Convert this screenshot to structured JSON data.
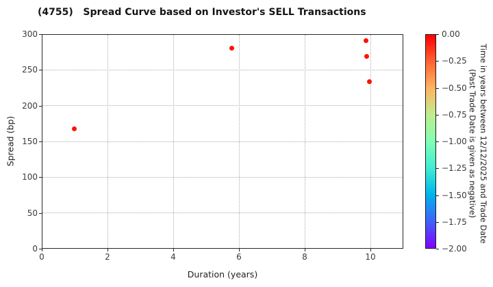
{
  "title": "(4755)   Spread Curve based on Investor's SELL Transactions",
  "chart_data": {
    "type": "scatter",
    "title": "(4755)   Spread Curve based on Investor's SELL Transactions",
    "xlabel": "Duration (years)",
    "ylabel": "Spread (bp)",
    "xlim": [
      0,
      11
    ],
    "ylim": [
      0,
      300
    ],
    "xticks": [
      0,
      2,
      4,
      6,
      8,
      10
    ],
    "yticks": [
      0,
      50,
      100,
      150,
      200,
      250,
      300
    ],
    "grid": true,
    "point_color": "#ff1200",
    "points": [
      {
        "x": 0.96,
        "y": 169,
        "time_value": 0.0
      },
      {
        "x": 5.77,
        "y": 281,
        "time_value": 0.0
      },
      {
        "x": 9.85,
        "y": 292,
        "time_value": 0.0
      },
      {
        "x": 9.87,
        "y": 270,
        "time_value": 0.0
      },
      {
        "x": 9.94,
        "y": 235,
        "time_value": 0.0
      }
    ],
    "colorbar": {
      "label_line1": "Time in years between 12/12/2025 and Trade Date",
      "label_line2": "(Past Trade Date is given as negative)",
      "vmax": 0.0,
      "vmin": -2.0,
      "tick_labels": [
        "0.00",
        "−0.25",
        "−0.50",
        "−0.75",
        "−1.00",
        "−1.25",
        "−1.50",
        "−1.75",
        "−2.00"
      ],
      "gradient_stops": [
        {
          "pos": 0.0,
          "color": "#ff0000"
        },
        {
          "pos": 0.125,
          "color": "#ff6232"
        },
        {
          "pos": 0.25,
          "color": "#ffb462"
        },
        {
          "pos": 0.375,
          "color": "#bfec8e"
        },
        {
          "pos": 0.5,
          "color": "#80ffb4"
        },
        {
          "pos": 0.625,
          "color": "#40ecd4"
        },
        {
          "pos": 0.75,
          "color": "#00b4ec"
        },
        {
          "pos": 0.875,
          "color": "#4062fa"
        },
        {
          "pos": 1.0,
          "color": "#8000ff"
        }
      ]
    }
  }
}
